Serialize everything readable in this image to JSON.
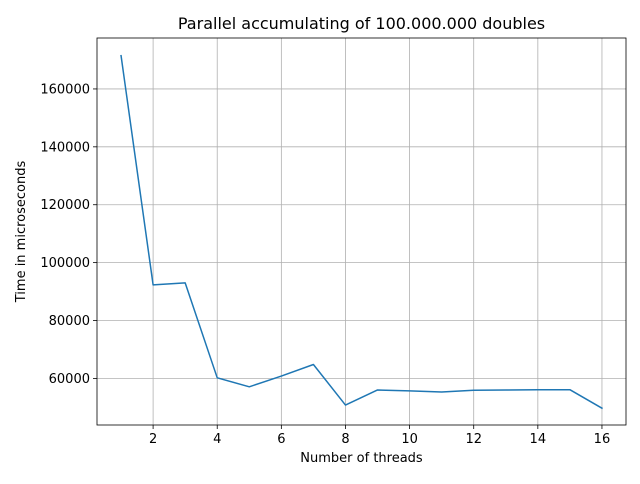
{
  "chart_data": {
    "type": "line",
    "title": "Parallel accumulating of 100.000.000 doubles",
    "xlabel": "Number of threads",
    "ylabel": "Time in microseconds",
    "xlim": [
      0.25,
      16.75
    ],
    "ylim": [
      43900,
      177600
    ],
    "xticks": [
      2,
      4,
      6,
      8,
      10,
      12,
      14,
      16
    ],
    "xtick_labels": [
      "2",
      "4",
      "6",
      "8",
      "10",
      "12",
      "14",
      "16"
    ],
    "yticks": [
      60000,
      80000,
      100000,
      120000,
      140000,
      160000
    ],
    "ytick_labels": [
      "60000",
      "80000",
      "100000",
      "120000",
      "140000",
      "160000"
    ],
    "grid": true,
    "legend": "none",
    "series": [
      {
        "color": "#1f77b4",
        "x": [
          1,
          2,
          3,
          4,
          5,
          6,
          7,
          8,
          9,
          10,
          11,
          12,
          13,
          14,
          15,
          16
        ],
        "y": [
          171500,
          92300,
          93000,
          60200,
          57100,
          60800,
          64800,
          50800,
          56000,
          55700,
          55300,
          55900,
          56000,
          56100,
          56100,
          49700
        ]
      }
    ]
  }
}
